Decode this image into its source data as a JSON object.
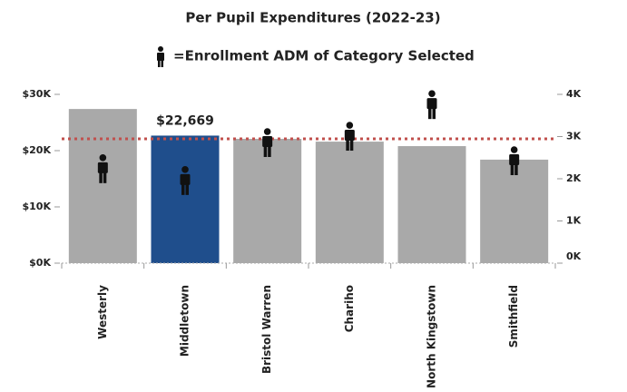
{
  "chart_data": {
    "type": "bar",
    "title": "Per Pupil Expenditures (2022-23)",
    "subtitle": "=Enrollment ADM of Category Selected",
    "categories": [
      "Westerly",
      "Middletown",
      "Bristol Warren",
      "Chariho",
      "North Kingstown",
      "Smithfield"
    ],
    "series": [
      {
        "values": [
          27400,
          22669,
          22100,
          21600,
          20800,
          18400
        ],
        "colors": [
          "#a9a9a9",
          "#1f4e8c",
          "#a9a9a9",
          "#a9a9a9",
          "#a9a9a9",
          "#a9a9a9"
        ],
        "value_labels": [
          null,
          "$22,669",
          null,
          null,
          null,
          null
        ]
      },
      {
        "axis": "y2",
        "values": [
          2240,
          1960,
          2860,
          3010,
          3760,
          2430
        ],
        "color": "#111111"
      }
    ],
    "reference_line": {
      "value": 22100,
      "color": "#c0504d"
    },
    "ylim": [
      0,
      30000
    ],
    "yticks": [
      {
        "value": 0,
        "label": "$0K"
      },
      {
        "value": 10000,
        "label": "$10K"
      },
      {
        "value": 20000,
        "label": "$20K"
      },
      {
        "value": 30000,
        "label": "$30K"
      }
    ],
    "y2lim": [
      0,
      4000
    ],
    "y2ticks": [
      {
        "value": 0,
        "label": "0K"
      },
      {
        "value": 1000,
        "label": "1K"
      },
      {
        "value": 2000,
        "label": "2K"
      },
      {
        "value": 3000,
        "label": "3K"
      },
      {
        "value": 4000,
        "label": "4K"
      }
    ],
    "grid": false
  }
}
